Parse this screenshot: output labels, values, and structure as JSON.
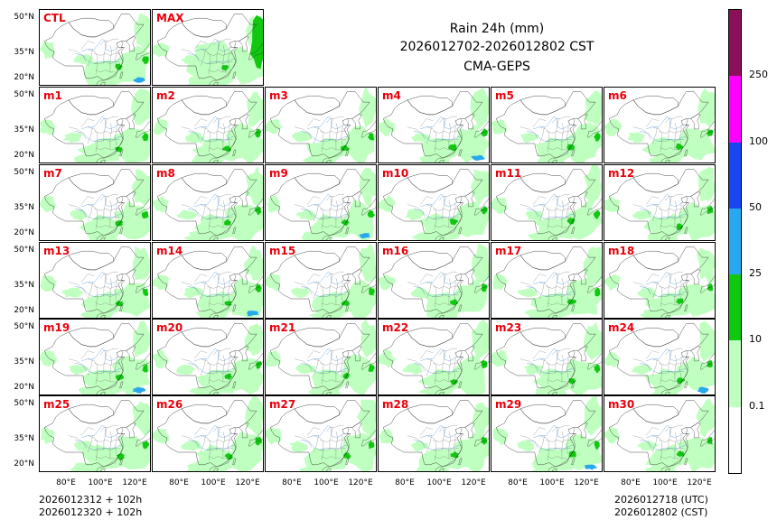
{
  "title": {
    "line1": "Rain 24h (mm)",
    "line2": "2026012702-2026012802 CST",
    "line3": "CMA-GEPS"
  },
  "panels": [
    "CTL",
    "MAX",
    "m1",
    "m2",
    "m3",
    "m4",
    "m5",
    "m6",
    "m7",
    "m8",
    "m9",
    "m10",
    "m11",
    "m12",
    "m13",
    "m14",
    "m15",
    "m16",
    "m17",
    "m18",
    "m19",
    "m20",
    "m21",
    "m22",
    "m23",
    "m24",
    "m25",
    "m26",
    "m27",
    "m28",
    "m29",
    "m30"
  ],
  "y_ticks": [
    "50°N",
    "35°N",
    "20°N"
  ],
  "x_ticks": [
    "80°E",
    "100°E",
    "120°E"
  ],
  "footer": {
    "left_line1": "2026012312 + 102h",
    "left_line2": "2026012320 + 102h",
    "right_line1": "2026012718 (UTC)",
    "right_line2": "2026012802 (CST)"
  },
  "colorbar": {
    "levels": [
      "0.1",
      "10",
      "25",
      "50",
      "100",
      "250"
    ],
    "colors": [
      "#ffffff",
      "#bfffbf",
      "#11c811",
      "#28a8f0",
      "#1846f0",
      "#ff00ff",
      "#8b1058"
    ]
  },
  "chart_data": {
    "type": "heatmap",
    "title": "Rain 24h (mm) 2026012702-2026012802 CST CMA-GEPS",
    "variable": "24h accumulated precipitation (mm)",
    "members": [
      "CTL",
      "MAX",
      "m1",
      "m2",
      "m3",
      "m4",
      "m5",
      "m6",
      "m7",
      "m8",
      "m9",
      "m10",
      "m11",
      "m12",
      "m13",
      "m14",
      "m15",
      "m16",
      "m17",
      "m18",
      "m19",
      "m20",
      "m21",
      "m22",
      "m23",
      "m24",
      "m25",
      "m26",
      "m27",
      "m28",
      "m29",
      "m30"
    ],
    "lat_ticks": [
      50,
      35,
      20
    ],
    "lon_ticks": [
      80,
      100,
      120
    ],
    "lat_range": [
      18,
      55
    ],
    "lon_range": [
      70,
      140
    ],
    "contour_levels": [
      0.1,
      10,
      25,
      50,
      100,
      250
    ],
    "region": "China"
  }
}
